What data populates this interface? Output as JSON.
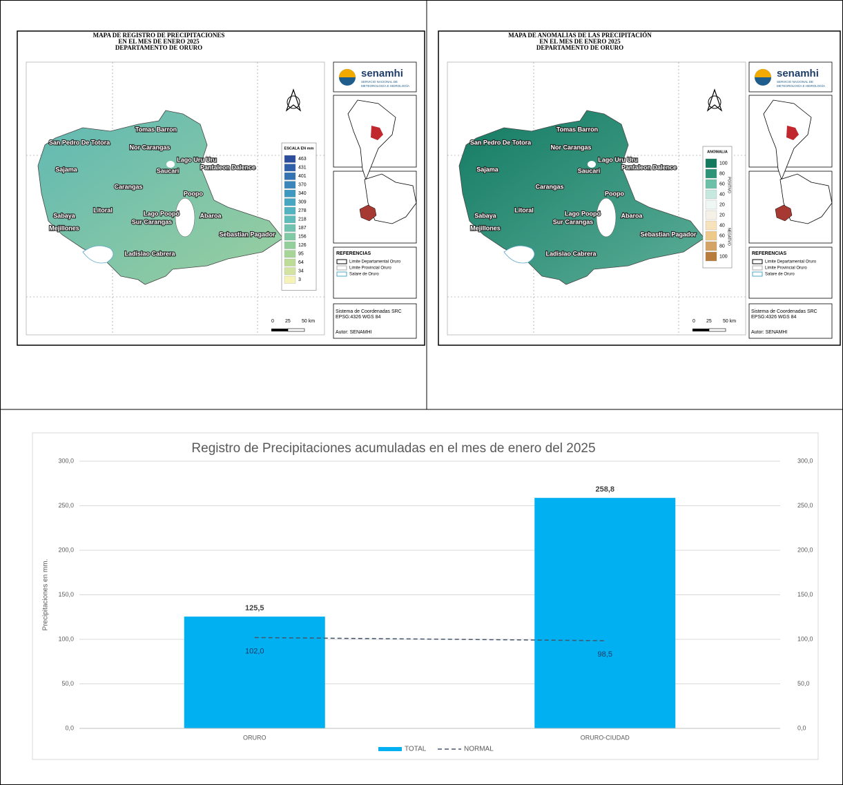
{
  "maps": [
    {
      "title": [
        "MAPA DE REGISTRO DE PRECIPITACIONES",
        "EN EL MES DE ENERO 2025",
        "DEPARTAMENTO DE ORURO"
      ],
      "legend_title": "ESCALA EN mm",
      "legend_values": [
        463,
        431,
        401,
        370,
        340,
        309,
        278,
        218,
        187,
        156,
        126,
        95,
        64,
        34,
        3
      ],
      "legend_colors": [
        "#2c4c9c",
        "#2f5fa8",
        "#3473b2",
        "#3a86ba",
        "#3f98bf",
        "#47a7c1",
        "#52b4c0",
        "#5fbcb8",
        "#6fc3ae",
        "#80c9a4",
        "#93cf9b",
        "#a7d597",
        "#bddc98",
        "#d3e4a2",
        "#f5f3b8"
      ]
    },
    {
      "title": [
        "MAPA DE ANOMALIAS DE LAS PRECIPITACIÓN",
        "EN EL MES DE ENERO 2025",
        "DEPARTAMENTO DE ORURO"
      ],
      "legend_title": "ANOMALIA",
      "legend_values": [
        100,
        80,
        60,
        40,
        20,
        20,
        40,
        60,
        80,
        100
      ],
      "legend_colors": [
        "#137a5e",
        "#2e9478",
        "#6cc0a8",
        "#c5e8df",
        "#eef7f4",
        "#f6f1e6",
        "#f6e3bb",
        "#edc98a",
        "#d4a467",
        "#b87d3c"
      ],
      "legend_groups": [
        "POSITIVO",
        "NEGATIVO"
      ]
    }
  ],
  "places": [
    "Tomas Barron",
    "San Pedro De Totora",
    "Nor Carangas",
    "Lago Uru Uru",
    "Pantaleon Dalence",
    "Sajama",
    "Saucari",
    "Carangas",
    "Poopo",
    "Litoral",
    "Lago Poopó",
    "Sabaya",
    "Sur Carangas",
    "Abaroa",
    "Mejillones",
    "Sebastian Pagador",
    "Ladislao Cabrera"
  ],
  "logo": {
    "name": "senamhi",
    "subtitle": [
      "SERVICIO NACIONAL DE",
      "METEOROLOGÍA E HIDROLOGÍA"
    ]
  },
  "references": {
    "title": "REFERENCIAS",
    "items": [
      "Limite Departamental Oruro",
      "Limite Provincial Oruro",
      "Salare de Oruro"
    ]
  },
  "crs": [
    "Sistema de Coordenadas SRC",
    "EPSG:4326   WGS 84"
  ],
  "author": "Autor: SENAMHI",
  "scale": [
    "0",
    "25",
    "50 km"
  ],
  "chart_data": {
    "type": "bar",
    "title": "Registro de Precipitaciones acumuladas en el mes de enero del 2025",
    "y_label": "Precipitaciones en mm.",
    "categories": [
      "ORURO",
      "ORURO-CIUDAD"
    ],
    "series": [
      {
        "name": "TOTAL",
        "type": "bar",
        "color": "#00b0f0",
        "values": [
          125.5,
          258.8
        ],
        "value_labels": [
          "125,5",
          "258,8"
        ]
      },
      {
        "name": "NORMAL",
        "type": "line",
        "color": "#44546a",
        "dashed": true,
        "values": [
          102.0,
          98.5
        ],
        "value_labels": [
          "102,0",
          "98,5"
        ]
      }
    ],
    "ylim": [
      0,
      300
    ],
    "yticks": [
      {
        "value": 0,
        "label": "0,0"
      },
      {
        "value": 50,
        "label": "50,0"
      },
      {
        "value": 100,
        "label": "100,0"
      },
      {
        "value": 150,
        "label": "150,0"
      },
      {
        "value": 200,
        "label": "200,0"
      },
      {
        "value": 250,
        "label": "250,0"
      },
      {
        "value": 300,
        "label": "300,0"
      }
    ],
    "y2lim": [
      0,
      300
    ],
    "y2ticks": [
      {
        "value": 0,
        "label": "0,0"
      },
      {
        "value": 50,
        "label": "50,0"
      },
      {
        "value": 100,
        "label": "100,0"
      },
      {
        "value": 150,
        "label": "150,0"
      },
      {
        "value": 200,
        "label": "200,0"
      },
      {
        "value": 250,
        "label": "250,0"
      },
      {
        "value": 300,
        "label": "300,0"
      }
    ],
    "grid": true,
    "legend": "bottom"
  }
}
